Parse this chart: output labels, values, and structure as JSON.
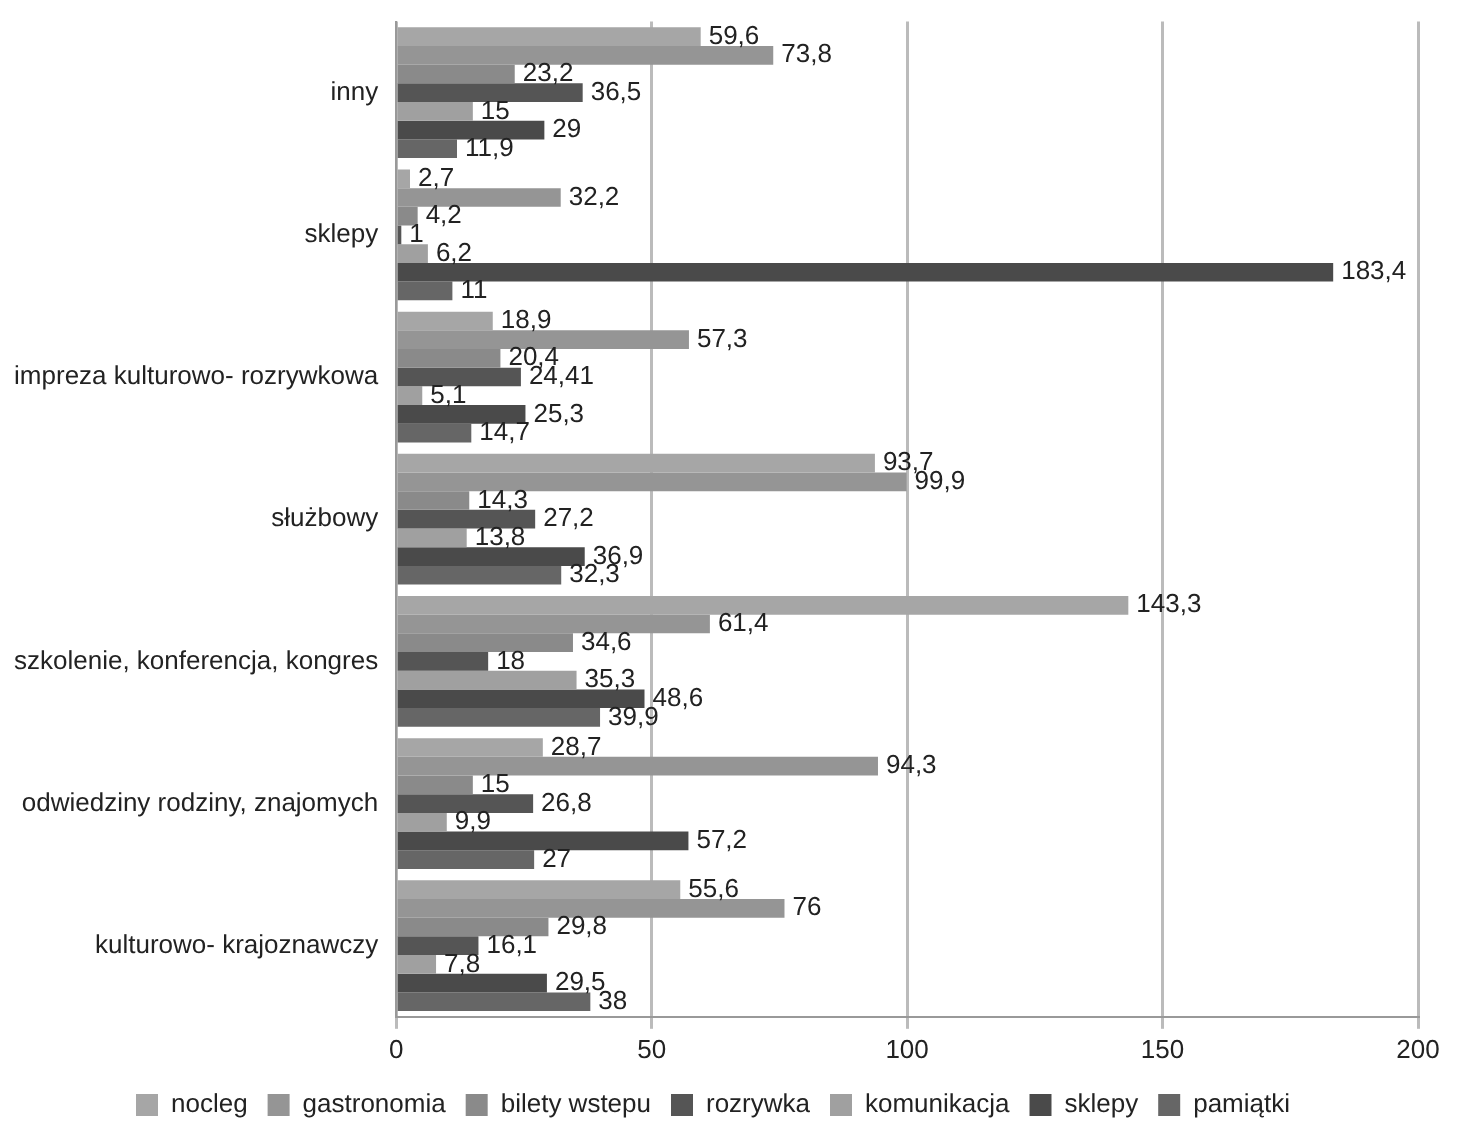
{
  "chart_data": {
    "type": "bar",
    "orientation": "horizontal",
    "categories": [
      "inny",
      "sklepy",
      "impreza kulturowo- rozrywkowa",
      "służbowy",
      "szkolenie, konferencja, kongres",
      "odwiedziny rodziny, znajomych",
      "kulturowo- krajoznawczy"
    ],
    "series": [
      {
        "name": "nocleg",
        "color": "#a6a6a6",
        "values": [
          59.6,
          2.7,
          18.9,
          93.7,
          143.3,
          28.7,
          55.6
        ],
        "value_labels": [
          "59,6",
          "2,7",
          "18,9",
          "93,7",
          "143,3",
          "28,7",
          "55,6"
        ]
      },
      {
        "name": "gastronomia",
        "color": "#959595",
        "values": [
          73.8,
          32.2,
          57.3,
          99.9,
          61.4,
          94.3,
          76
        ],
        "value_labels": [
          "73,8",
          "32,2",
          "57,3",
          "99,9",
          "61,4",
          "94,3",
          "76"
        ]
      },
      {
        "name": "bilety wstepu",
        "color": "#8a8a8a",
        "values": [
          23.2,
          4.2,
          20.4,
          14.3,
          34.6,
          15,
          29.8
        ],
        "value_labels": [
          "23,2",
          "4,2",
          "20,4",
          "14,3",
          "34,6",
          "15",
          "29,8"
        ]
      },
      {
        "name": "rozrywka",
        "color": "#555555",
        "values": [
          36.5,
          1,
          24.41,
          27.2,
          18,
          26.8,
          16.1
        ],
        "value_labels": [
          "36,5",
          "1",
          "24,41",
          "27,2",
          "18",
          "26,8",
          "16,1"
        ]
      },
      {
        "name": "komunikacja",
        "color": "#a0a0a0",
        "values": [
          15,
          6.2,
          5.1,
          13.8,
          35.3,
          9.9,
          7.8
        ],
        "value_labels": [
          "15",
          "6,2",
          "5,1",
          "13,8",
          "35,3",
          "9,9",
          "7,8"
        ]
      },
      {
        "name": "sklepy",
        "color": "#4a4a4a",
        "values": [
          29,
          183.4,
          25.3,
          36.9,
          48.6,
          57.2,
          29.5
        ],
        "value_labels": [
          "29",
          "183,4",
          "25,3",
          "36,9",
          "48,6",
          "57,2",
          "29,5"
        ]
      },
      {
        "name": "pamiątki",
        "color": "#666666",
        "values": [
          11.9,
          11,
          14.7,
          32.3,
          39.9,
          27,
          38
        ],
        "value_labels": [
          "11,9",
          "11",
          "14,7",
          "32,3",
          "39,9",
          "27",
          "38"
        ]
      }
    ],
    "xlim": [
      0,
      200
    ],
    "xticks": [
      0,
      50,
      100,
      150,
      200
    ],
    "grid": "x",
    "legend": "bottom"
  }
}
